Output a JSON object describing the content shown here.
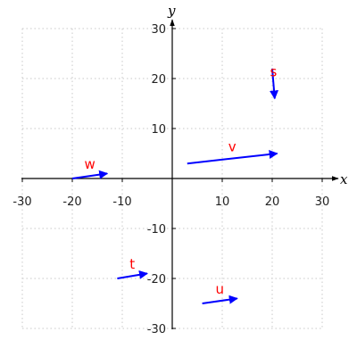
{
  "chart_data": {
    "type": "vector-field",
    "title": "",
    "xlabel": "x",
    "ylabel": "y",
    "xlim": [
      -30,
      30
    ],
    "ylim": [
      -30,
      30
    ],
    "grid": true,
    "xticks": [
      -30,
      -20,
      -10,
      10,
      20,
      30
    ],
    "yticks": [
      -30,
      -20,
      -10,
      10,
      20,
      30
    ],
    "x_tick_labels": [
      "-30",
      "-20",
      "-10",
      "10",
      "20",
      "30"
    ],
    "y_tick_labels": [
      "-30",
      "-20",
      "-10",
      "10",
      "20",
      "30"
    ],
    "vectors": [
      {
        "label": "w",
        "tail": [
          -20,
          0
        ],
        "head": [
          -13,
          1
        ]
      },
      {
        "label": "v",
        "tail": [
          3,
          3
        ],
        "head": [
          21,
          5
        ]
      },
      {
        "label": "s",
        "tail": [
          20,
          22
        ],
        "head": [
          20.5,
          16
        ]
      },
      {
        "label": "t",
        "tail": [
          -11,
          -20
        ],
        "head": [
          -5,
          -19
        ]
      },
      {
        "label": "u",
        "tail": [
          6,
          -25
        ],
        "head": [
          13,
          -24
        ]
      }
    ],
    "colors": {
      "arrow": "#0000ff",
      "label": "#ff0000",
      "grid": "#c8c8c8",
      "axis": "#000000"
    }
  }
}
